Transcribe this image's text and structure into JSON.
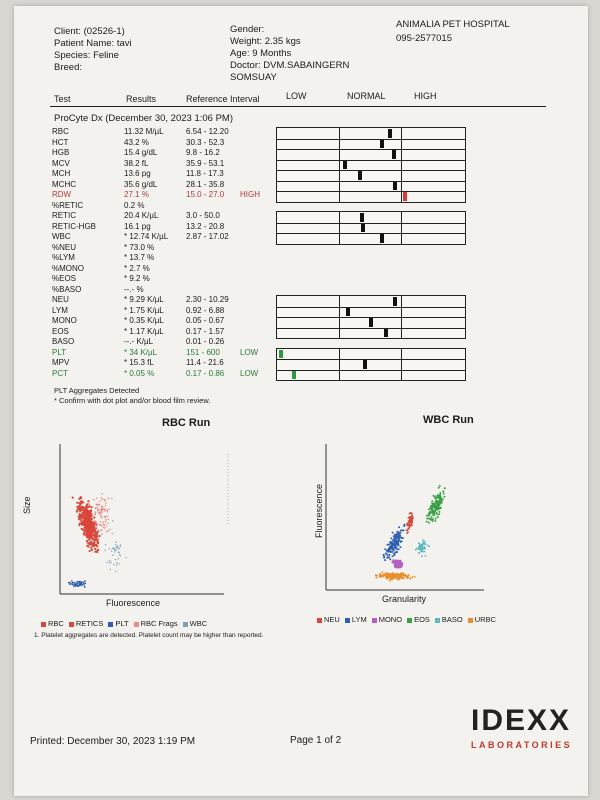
{
  "header": {
    "client_label": "Client:",
    "client_value": "(02526-1)",
    "patient_label": "Patient Name:",
    "patient_value": "tavi",
    "species_label": "Species:",
    "species_value": "Feline",
    "breed_label": "Breed:",
    "gender_label": "Gender:",
    "weight_label": "Weight:",
    "weight_value": "2.35 kgs",
    "age_label": "Age:",
    "age_value": "9 Months",
    "doctor_label": "Doctor:",
    "doctor_value": "DVM.SABAINGERN",
    "doctor_value_2": "SOMSUAY",
    "hospital_name": "ANIMALIA PET HOSPITAL",
    "hospital_phone": "095-2577015"
  },
  "columns": {
    "test": "Test",
    "results": "Results",
    "reference": "Reference Interval",
    "low": "LOW",
    "normal": "NORMAL",
    "high": "HIGH"
  },
  "section_title": "ProCyte Dx (December 30, 2023 1:06 PM)",
  "rows": [
    {
      "test": "RBC",
      "result": "11.32 M/µL",
      "ref": "6.54 - 12.20",
      "flag": "",
      "mark": 0.6
    },
    {
      "test": "HCT",
      "result": "43.2 %",
      "ref": "30.3 - 52.3",
      "flag": "",
      "mark": 0.56
    },
    {
      "test": "HGB",
      "result": "15.4 g/dL",
      "ref": "9.8 - 16.2",
      "flag": "",
      "mark": 0.62
    },
    {
      "test": "MCV",
      "result": "38.2 fL",
      "ref": "35.9 - 53.1",
      "flag": "",
      "mark": 0.36
    },
    {
      "test": "MCH",
      "result": "13.6 pg",
      "ref": "11.8 - 17.3",
      "flag": "",
      "mark": 0.44
    },
    {
      "test": "MCHC",
      "result": "35.6 g/dL",
      "ref": "28.1 - 35.8",
      "flag": "",
      "mark": 0.63
    },
    {
      "test": "RDW",
      "result": "27.1 %",
      "ref": "15.0 - 27.0",
      "flag": "HIGH",
      "mark": 0.68
    },
    {
      "test": "%RETIC",
      "result": "0.2 %",
      "ref": "",
      "flag": "",
      "mark": null
    },
    {
      "test": "RETIC",
      "result": "20.4 K/µL",
      "ref": "3.0 - 50.0",
      "flag": "",
      "mark": 0.45
    },
    {
      "test": "RETIC-HGB",
      "result": "16.1 pg",
      "ref": "13.2 - 20.8",
      "flag": "",
      "mark": 0.46
    },
    {
      "test": "WBC",
      "result": "* 12.74 K/µL",
      "ref": "2.87 - 17.02",
      "flag": "",
      "mark": 0.56
    },
    {
      "test": "%NEU",
      "result": "* 73.0 %",
      "ref": "",
      "flag": "",
      "mark": null
    },
    {
      "test": "%LYM",
      "result": "* 13.7 %",
      "ref": "",
      "flag": "",
      "mark": null
    },
    {
      "test": "%MONO",
      "result": "* 2.7 %",
      "ref": "",
      "flag": "",
      "mark": null
    },
    {
      "test": "%EOS",
      "result": "* 9.2 %",
      "ref": "",
      "flag": "",
      "mark": null
    },
    {
      "test": "%BASO",
      "result": "--.- %",
      "ref": "",
      "flag": "",
      "mark": null
    },
    {
      "test": "NEU",
      "result": "* 9.29 K/µL",
      "ref": "2.30 - 10.29",
      "flag": "",
      "mark": 0.63
    },
    {
      "test": "LYM",
      "result": "* 1.75 K/µL",
      "ref": "0.92 - 6.88",
      "flag": "",
      "mark": 0.38
    },
    {
      "test": "MONO",
      "result": "* 0.35 K/µL",
      "ref": "0.05 - 0.67",
      "flag": "",
      "mark": 0.5
    },
    {
      "test": "EOS",
      "result": "* 1.17 K/µL",
      "ref": "0.17 - 1.57",
      "flag": "",
      "mark": 0.58
    },
    {
      "test": "BASO",
      "result": "--.- K/µL",
      "ref": "0.01 - 0.26",
      "flag": "",
      "mark": null
    },
    {
      "test": "PLT",
      "result": "* 34 K/µL",
      "ref": "151 - 600",
      "flag": "LOW",
      "mark": 0.02
    },
    {
      "test": "MPV",
      "result": "* 15.3 fL",
      "ref": "11.4 - 21.6",
      "flag": "",
      "mark": 0.47
    },
    {
      "test": "PCT",
      "result": "* 0.05 %",
      "ref": "0.17 - 0.86",
      "flag": "LOW",
      "mark": 0.09
    }
  ],
  "notes": {
    "aggregates": "PLT Aggregates Detected",
    "confirm": "* Confirm with dot plot and/or blood film review.",
    "footnote": "1. Platelet aggregates are detected. Platelet count may be higher than reported."
  },
  "rbc_plot": {
    "title": "RBC Run",
    "xlabel": "Fluorescence",
    "ylabel": "Size",
    "legend": [
      {
        "label": "RBC",
        "color": "#d9463a"
      },
      {
        "label": "RETICS",
        "color": "#d9463a"
      },
      {
        "label": "PLT",
        "color": "#2f5fb0"
      },
      {
        "label": "RBC Frags",
        "color": "#e88c8c"
      },
      {
        "label": "WBC",
        "color": "#7aa0b8"
      }
    ]
  },
  "wbc_plot": {
    "title": "WBC Run",
    "xlabel": "Granularity",
    "ylabel": "Fluorescence",
    "legend": [
      {
        "label": "NEU",
        "color": "#d9463a"
      },
      {
        "label": "LYM",
        "color": "#2f5fb0"
      },
      {
        "label": "MONO",
        "color": "#b560c0"
      },
      {
        "label": "EOS",
        "color": "#3aa047"
      },
      {
        "label": "BASO",
        "color": "#5fb8c0"
      },
      {
        "label": "URBC",
        "color": "#e8902e"
      }
    ]
  },
  "footer": {
    "printed": "Printed: December 30, 2023 1:19 PM",
    "page": "Page 1 of 2",
    "brand": "IDEXX",
    "brand_sub": "LABORATORIES"
  },
  "colors": {
    "high": "#b03a3a",
    "low": "#2a7a3a",
    "marker": "#111111"
  }
}
